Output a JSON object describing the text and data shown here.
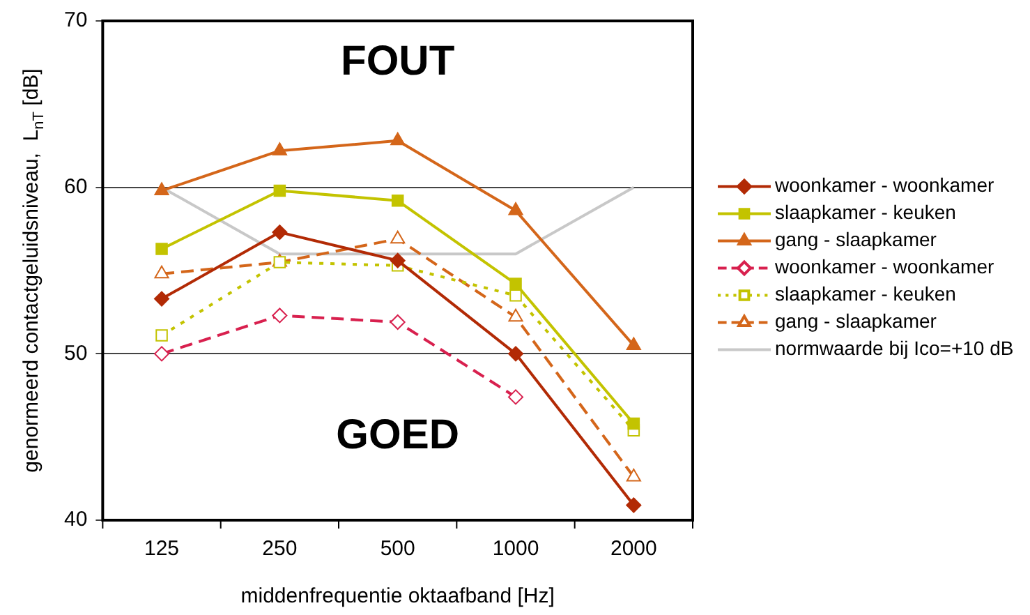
{
  "chart_data": {
    "type": "line",
    "xlabel": "middenfrequentie oktaafband [Hz]",
    "ylabel": "genormeerd contactgeluidsniveau,  L$_{nT}$ [dB]",
    "categories": [
      "125",
      "250",
      "500",
      "1000",
      "2000"
    ],
    "series": [
      {
        "name": "woonkamer - woonkamer",
        "color": "#b22a05",
        "marker": "diamond",
        "line_style": "solid",
        "values": [
          53.3,
          57.3,
          55.6,
          50.0,
          40.9
        ]
      },
      {
        "name": "slaapkamer - keuken",
        "color": "#c3c300",
        "marker": "square",
        "line_style": "solid",
        "values": [
          56.3,
          59.8,
          59.2,
          54.2,
          45.8
        ]
      },
      {
        "name": "gang - slaapkamer",
        "color": "#d4661a",
        "marker": "triangle",
        "line_style": "solid",
        "values": [
          59.8,
          62.2,
          62.8,
          58.6,
          50.5
        ]
      },
      {
        "name": "woonkamer - woonkamer",
        "color": "#d8204e",
        "marker": "diamond",
        "line_style": "dashed",
        "values": [
          50.0,
          52.3,
          51.9,
          47.4,
          null
        ]
      },
      {
        "name": "slaapkamer - keuken",
        "color": "#c3c300",
        "marker": "square",
        "line_style": "dotted",
        "values": [
          51.1,
          55.5,
          55.3,
          53.5,
          45.4
        ]
      },
      {
        "name": "gang - slaapkamer",
        "color": "#d4661a",
        "marker": "triangle",
        "line_style": "dashed",
        "values": [
          54.8,
          55.5,
          56.9,
          52.2,
          42.6
        ]
      },
      {
        "name": "normwaarde bij Ico=+10 dB",
        "color": "#c8c8c8",
        "marker": "none",
        "line_style": "solid",
        "values": [
          60,
          56,
          56,
          56,
          60
        ]
      }
    ],
    "ylim": [
      40,
      70
    ],
    "yticks": [
      40,
      50,
      60,
      70
    ],
    "grid": "y",
    "legend": "right",
    "annotations": [
      "FOUT",
      "GOED"
    ]
  }
}
